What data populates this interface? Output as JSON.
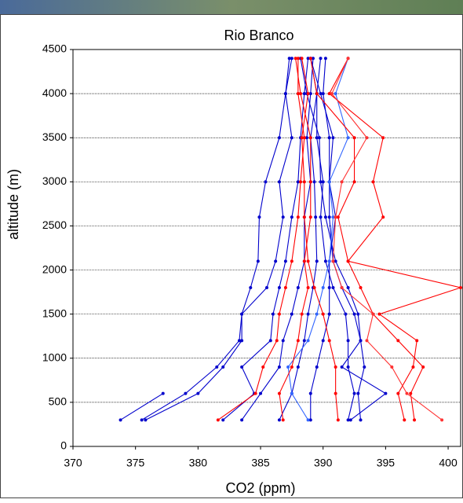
{
  "chart_data": {
    "type": "line",
    "title": "Rio Branco",
    "x_label": "CO2 (ppm)",
    "y_label": "altitude (m)",
    "y": [
      300,
      600,
      900,
      1200,
      1500,
      1800,
      2100,
      2600,
      3000,
      3500,
      4000,
      4400
    ],
    "xlim": [
      370,
      401
    ],
    "xticks": [
      370,
      375,
      380,
      385,
      390,
      395,
      400
    ],
    "ylim": [
      0,
      4500
    ],
    "yticks": [
      0,
      500,
      1000,
      1500,
      2000,
      2500,
      3000,
      3500,
      4000,
      4500
    ],
    "grid": true,
    "series": [
      {
        "color": "#0000cc",
        "values": [
          373.8,
          377.2,
          null,
          null,
          null,
          null,
          null,
          null,
          null,
          null,
          null,
          null
        ]
      },
      {
        "color": "#0000cc",
        "values": [
          375.5,
          379,
          381.5,
          383.3,
          383.5,
          384.2,
          384.8,
          384.9,
          385.4,
          386.5,
          387,
          387.3
        ]
      },
      {
        "color": "#0000cc",
        "values": [
          375.8,
          380,
          382,
          383.5,
          383.5,
          385.5,
          386.2,
          386.8,
          386.5,
          387.5,
          387,
          387.5
        ]
      },
      {
        "color": "#0000cc",
        "values": [
          382,
          384.5,
          383.5,
          385.8,
          386,
          386.5,
          387,
          387.5,
          388,
          388.2,
          388.5,
          388.8
        ]
      },
      {
        "color": "#0000cc",
        "values": [
          383.5,
          385,
          386.5,
          386.8,
          387.5,
          388,
          388.5,
          388.5,
          389,
          388.7,
          389,
          389.2
        ]
      },
      {
        "color": "#0000cc",
        "values": [
          386.5,
          387.5,
          388,
          388.5,
          388.8,
          389.2,
          389.5,
          389.4,
          389.3,
          389,
          389.5,
          389.8
        ]
      },
      {
        "color": "#0000cc",
        "values": [
          389,
          389,
          389.5,
          390,
          390.5,
          390.5,
          390.5,
          391,
          390.5,
          390.5,
          390,
          390.2
        ]
      },
      {
        "color": "#0000cc",
        "values": [
          392,
          392.5,
          392,
          392,
          391.8,
          390.8,
          390.2,
          389.8,
          390,
          389.5,
          389.5,
          389
        ]
      },
      {
        "color": "#0000cc",
        "values": [
          393,
          392.8,
          393.3,
          393,
          392.5,
          391.5,
          390.8,
          390.5,
          390.5,
          390.8,
          389.8,
          389
        ]
      },
      {
        "color": "#0000cc",
        "values": [
          392.2,
          395,
          391.5,
          393,
          392.8,
          392,
          391,
          390.2,
          389.8,
          389.7,
          388.7,
          388.2
        ]
      },
      {
        "color": "#3366ff",
        "values": [
          388.8,
          387.5,
          387.2,
          388.8,
          389.5,
          390,
          390.5,
          390.8,
          390.5,
          392,
          391,
          392
        ]
      },
      {
        "color": "#ff0000",
        "values": [
          381.6,
          384.6,
          385.2,
          386.3,
          386.5,
          387,
          387.5,
          388,
          388.2,
          388.5,
          388,
          388
        ]
      },
      {
        "color": "#ff0000",
        "values": [
          386.8,
          386.5,
          387.5,
          388,
          388.3,
          388.8,
          388.5,
          389,
          389,
          389,
          388.2,
          387.8
        ]
      },
      {
        "color": "#ff0000",
        "values": [
          391.2,
          391,
          391,
          390.5,
          390,
          389.3,
          388.8,
          388.5,
          388.5,
          388.3,
          388.8,
          388.3
        ]
      },
      {
        "color": "#ff0000",
        "values": [
          396.5,
          396,
          397.2,
          397.5,
          394.5,
          401,
          392,
          394.8,
          394,
          394.8,
          390.5,
          392
        ]
      },
      {
        "color": "#ff0000",
        "values": [
          397.3,
          397,
          398,
          396,
          394,
          393,
          392,
          391.2,
          392.5,
          392.5,
          389.5,
          389
        ]
      },
      {
        "color": "#ff3333",
        "values": [
          399.5,
          396.7,
          395.5,
          393.5,
          394,
          391.5,
          390.8,
          391,
          391.5,
          393.5,
          390.7,
          392
        ]
      }
    ]
  }
}
